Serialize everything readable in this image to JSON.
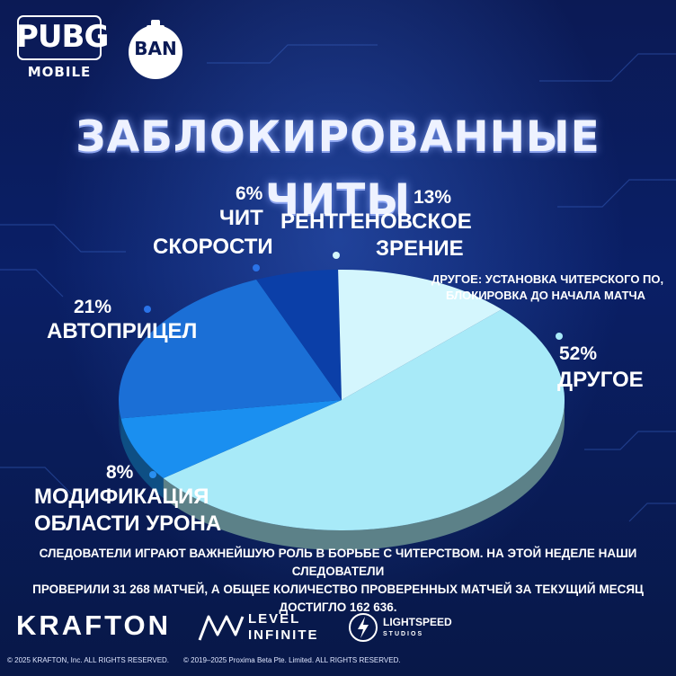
{
  "header": {
    "pubg_logo": "PUBG",
    "pubg_logo_sub": "MOBILE",
    "ban_badge": "BAN",
    "title": "ЗАБЛОКИРОВАННЫЕ ЧИТЫ"
  },
  "chart_data": {
    "type": "pie",
    "title": "ЗАБЛОКИРОВАННЫЕ ЧИТЫ",
    "slices": [
      {
        "label": "ДРУГОЕ",
        "value": 52,
        "value_label": "52%",
        "color": "#a8eaf8"
      },
      {
        "label": "МОДИФИКАЦИЯ ОБЛАСТИ УРОНА",
        "value": 8,
        "value_label": "8%",
        "color": "#1a8ff0"
      },
      {
        "label": "АВТОПРИЦЕЛ",
        "value": 21,
        "value_label": "21%",
        "color": "#1b6fd6"
      },
      {
        "label": "ЧИТ СКОРОСТИ",
        "value": 6,
        "value_label": "6%",
        "color": "#0b3fa8"
      },
      {
        "label": "РЕНТГЕНОВСКОЕ ЗРЕНИЕ",
        "value": 13,
        "value_label": "13%",
        "color": "#d4f6fd"
      }
    ],
    "labels_display": {
      "other": {
        "pct": "52%",
        "line1": "ДРУГОЕ"
      },
      "damage": {
        "pct": "8%",
        "line1": "МОДИФИКАЦИЯ",
        "line2": "ОБЛАСТИ УРОНА"
      },
      "aimbot": {
        "pct": "21%",
        "line1": "АВТОПРИЦЕЛ"
      },
      "speed": {
        "pct": "6%",
        "line1": "ЧИТ",
        "line2": "СКОРОСТИ"
      },
      "xray": {
        "pct": "13%",
        "line1": "РЕНТГЕНОВСКОЕ",
        "line2": "ЗРЕНИЕ"
      }
    },
    "annotation": {
      "line1": "ДРУГОЕ: УСТАНОВКА ЧИТЕРСКОГО ПО,",
      "line2": "БЛОКИРОВКА ДО НАЧАЛА МАТЧА"
    }
  },
  "footer": {
    "line1": "СЛЕДОВАТЕЛИ ИГРАЮТ ВАЖНЕЙШУЮ РОЛЬ В БОРЬБЕ С ЧИТЕРСТВОМ. НА ЭТОЙ НЕДЕЛЕ НАШИ СЛЕДОВАТЕЛИ",
    "line2": "ПРОВЕРИЛИ 31 268 МАТЧЕЙ, А ОБЩЕЕ КОЛИЧЕСТВО ПРОВЕРЕННЫХ МАТЧЕЙ ЗА ТЕКУЩИЙ МЕСЯЦ ДОСТИГЛО 162 636.",
    "krafton": "KRAFTON",
    "level_infinite_1": "LEVEL",
    "level_infinite_2": "INFINITE",
    "lightspeed_1": "LIGHTSPEED",
    "lightspeed_2": "STUDIOS",
    "copyright_1": "© 2025 KRAFTON, Inc. ALL RIGHTS RESERVED.",
    "copyright_2": "© 2019–2025 Proxima Beta Pte. Limited. ALL RIGHTS RESERVED."
  }
}
